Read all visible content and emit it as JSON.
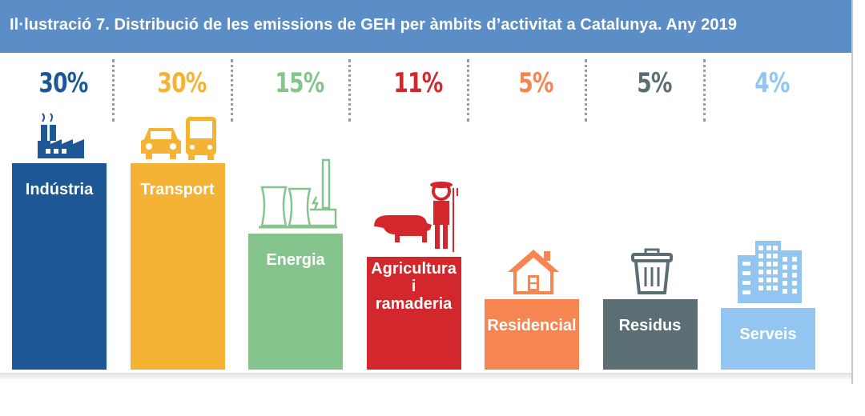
{
  "title": "Il·lustració 7. Distribució de les emissions de GEH per àmbits d’activitat a Catalunya. Any 2019",
  "chart_data": {
    "type": "bar",
    "categories": [
      "Indústria",
      "Transport",
      "Energia",
      "Agricultura i ramaderia",
      "Residencial",
      "Residus",
      "Serveis"
    ],
    "category_labels": [
      [
        "Indústria"
      ],
      [
        "Transport"
      ],
      [
        "Energia"
      ],
      [
        "Agricultura",
        "i",
        "ramaderia"
      ],
      [
        "Residencial"
      ],
      [
        "Residus"
      ],
      [
        "Serveis"
      ]
    ],
    "values": [
      30,
      30,
      15,
      11,
      5,
      5,
      4
    ],
    "value_labels": [
      "30%",
      "30%",
      "15%",
      "11%",
      "5%",
      "5%",
      "4%"
    ],
    "colors": [
      "#1d5796",
      "#f5b335",
      "#85c48c",
      "#d2272d",
      "#f78551",
      "#5b6e74",
      "#92c5ef"
    ],
    "icons": [
      "factory-icon",
      "car-bus-icon",
      "power-plant-icon",
      "farmer-pig-icon",
      "house-icon",
      "trash-can-icon",
      "buildings-icon"
    ],
    "ylim": [
      0,
      30
    ],
    "grid": false,
    "legend": "none"
  }
}
